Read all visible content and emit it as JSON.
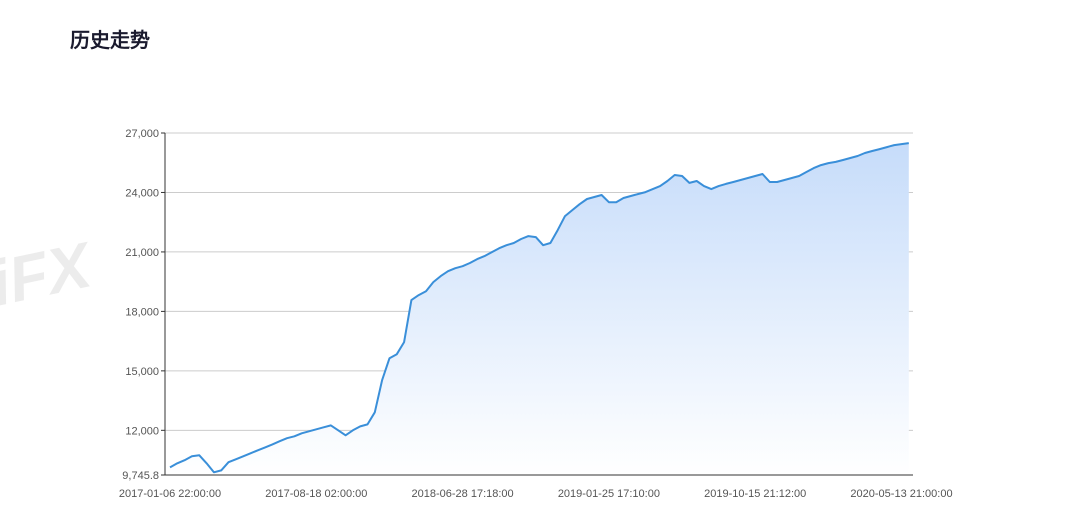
{
  "title": "历史走势",
  "watermark": "WikiFX",
  "chart_data": {
    "type": "area-line",
    "color": "#3a8fd9",
    "fill_top": "#c6dcfa",
    "fill_bottom": "#ffffff",
    "grid": true,
    "ylim": [
      9745.8,
      27000
    ],
    "yticks": [
      {
        "value": 9745.8,
        "label": "9,745.8"
      },
      {
        "value": 12000,
        "label": "12,000"
      },
      {
        "value": 15000,
        "label": "15,000"
      },
      {
        "value": 18000,
        "label": "18,000"
      },
      {
        "value": 21000,
        "label": "21,000"
      },
      {
        "value": 24000,
        "label": "24,000"
      },
      {
        "value": 27000,
        "label": "27,000"
      }
    ],
    "categories": [
      "2017-01-06 22:00:00",
      null,
      null,
      null,
      null,
      null,
      null,
      null,
      null,
      null,
      null,
      null,
      null,
      null,
      null,
      null,
      null,
      null,
      null,
      null,
      "2017-08-18 02:00:00",
      null,
      null,
      null,
      null,
      null,
      null,
      null,
      null,
      null,
      null,
      null,
      null,
      null,
      null,
      null,
      null,
      null,
      null,
      null,
      "2018-06-28 17:18:00",
      null,
      null,
      null,
      null,
      null,
      null,
      null,
      null,
      null,
      null,
      null,
      null,
      null,
      null,
      null,
      null,
      null,
      null,
      null,
      "2019-01-25 17:10:00",
      null,
      null,
      null,
      null,
      null,
      null,
      null,
      null,
      null,
      null,
      null,
      null,
      null,
      null,
      null,
      null,
      null,
      null,
      null,
      "2019-10-15 21:12:00",
      null,
      null,
      null,
      null,
      null,
      null,
      null,
      null,
      null,
      null,
      null,
      null,
      null,
      null,
      null,
      null,
      null,
      null,
      null,
      "2020-05-13 21:00:00",
      null
    ],
    "values": [
      10130,
      10335,
      10490,
      10690,
      10740,
      10335,
      9880,
      9980,
      10390,
      10540,
      10690,
      10840,
      10990,
      11140,
      11290,
      11450,
      11600,
      11700,
      11850,
      11950,
      12050,
      12150,
      12250,
      12000,
      11750,
      12000,
      12200,
      12300,
      12910,
      14530,
      15640,
      15840,
      16450,
      18570,
      18820,
      19020,
      19480,
      19780,
      20030,
      20180,
      20280,
      20440,
      20640,
      20790,
      20990,
      21190,
      21340,
      21450,
      21650,
      21800,
      21750,
      21340,
      21450,
      22100,
      22810,
      23110,
      23410,
      23670,
      23770,
      23870,
      23510,
      23510,
      23720,
      23820,
      23920,
      24020,
      24170,
      24320,
      24580,
      24880,
      24830,
      24480,
      24580,
      24320,
      24170,
      24320,
      24430,
      24530,
      24630,
      24730,
      24830,
      24930,
      24530,
      24530,
      24630,
      24730,
      24830,
      25030,
      25230,
      25380,
      25480,
      25540,
      25640,
      25740,
      25840,
      25990,
      26090,
      26190,
      26290,
      26390,
      26440,
      26490
    ]
  }
}
